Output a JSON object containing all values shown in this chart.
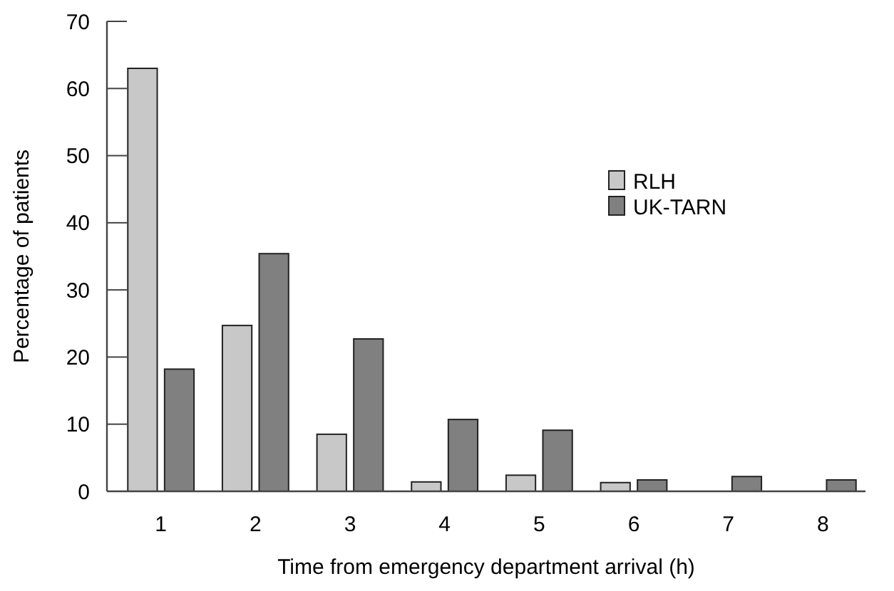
{
  "chart_data": {
    "type": "bar",
    "xlabel": "Time from emergency department arrival (h)",
    "ylabel": "Percentage of patients",
    "categories": [
      "1",
      "2",
      "3",
      "4",
      "5",
      "6",
      "7",
      "8"
    ],
    "series": [
      {
        "name": "RLH",
        "color": "#c8c8c8",
        "values": [
          63.0,
          24.7,
          8.5,
          1.4,
          2.4,
          1.3,
          0,
          0
        ]
      },
      {
        "name": "UK-TARN",
        "color": "#808080",
        "values": [
          18.2,
          35.4,
          22.7,
          10.7,
          9.1,
          1.7,
          2.2,
          1.7
        ]
      }
    ],
    "ylim": [
      0,
      70
    ],
    "yticks": [
      0,
      10,
      20,
      30,
      40,
      50,
      60,
      70
    ],
    "grid": false,
    "legend": "top right"
  }
}
